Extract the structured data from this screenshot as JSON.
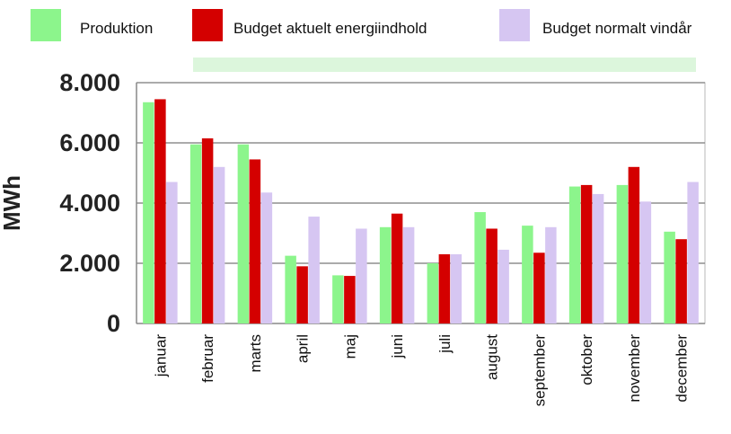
{
  "chart_data": {
    "type": "bar",
    "title": "",
    "xlabel": "",
    "ylabel": "MWh",
    "ylim": [
      0,
      8000
    ],
    "yticks": [
      "0",
      "2.000",
      "4.000",
      "6.000",
      "8.000"
    ],
    "grid": true,
    "legend_position": "top",
    "categories": [
      "januar",
      "februar",
      "marts",
      "april",
      "maj",
      "juni",
      "juli",
      "august",
      "september",
      "oktober",
      "november",
      "december"
    ],
    "series": [
      {
        "name": "Produktion",
        "color": "#8cf58c",
        "values": [
          7350,
          5950,
          5950,
          2250,
          1600,
          3200,
          2000,
          3700,
          3250,
          4550,
          4600,
          3050
        ]
      },
      {
        "name": "Budget aktuelt energiindhold",
        "color": "#d40000",
        "values": [
          7450,
          6150,
          5450,
          1900,
          1580,
          3650,
          2300,
          3150,
          2350,
          4600,
          5200,
          2800
        ]
      },
      {
        "name": "Budget normalt vindår",
        "color": "#d6c6f2",
        "values": [
          4700,
          5200,
          4350,
          3550,
          3150,
          3200,
          2300,
          2450,
          3200,
          4300,
          4050,
          4700
        ]
      }
    ]
  }
}
